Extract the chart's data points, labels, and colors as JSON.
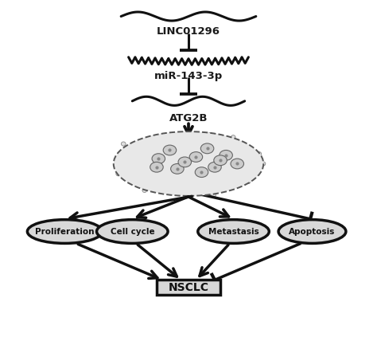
{
  "bg_color": "#ffffff",
  "text_color": "#1a1a1a",
  "linc_label": "LINC01296",
  "mir_label": "miR-143-3p",
  "atg_label": "ATG2B",
  "nsclc_label": "NSCLC",
  "ellipse_labels": [
    "Proliferation",
    "Cell cycle",
    "Metastasis",
    "Apoptosis"
  ],
  "ellipse_fill": "#d8d8d8",
  "ellipse_edge": "#111111",
  "nsclc_fill": "#d8d8d8",
  "nsclc_edge": "#111111",
  "arrow_color": "#111111",
  "lw": 2.2
}
